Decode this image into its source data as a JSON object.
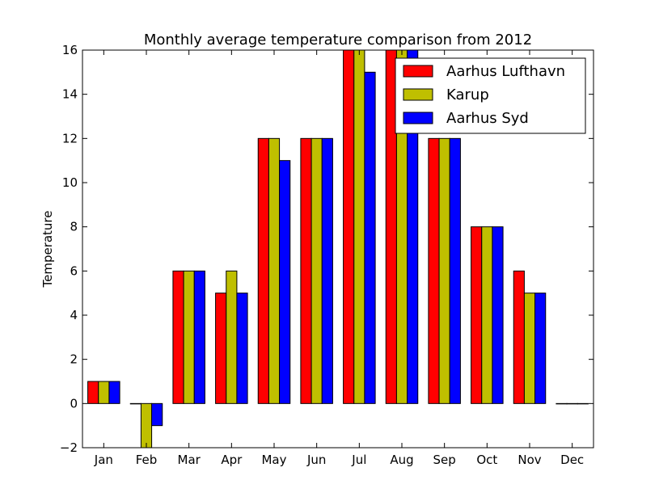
{
  "chart_data": {
    "type": "bar",
    "title": "Monthly average temperature comparison from 2012",
    "xlabel": "",
    "ylabel": "Temperature",
    "ylim": [
      -2,
      16
    ],
    "yticks": [
      -2,
      0,
      2,
      4,
      6,
      8,
      10,
      12,
      14,
      16
    ],
    "categories": [
      "Jan",
      "Feb",
      "Mar",
      "Apr",
      "May",
      "Jun",
      "Jul",
      "Aug",
      "Sep",
      "Oct",
      "Nov",
      "Dec"
    ],
    "series": [
      {
        "name": "Aarhus Lufthavn",
        "color": "#ff0000",
        "values": [
          1,
          0,
          6,
          5,
          12,
          12,
          16,
          16,
          12,
          8,
          6,
          0
        ]
      },
      {
        "name": "Karup",
        "color": "#bfbf00",
        "values": [
          1,
          -2,
          6,
          6,
          12,
          12,
          16,
          16,
          12,
          8,
          5,
          0
        ]
      },
      {
        "name": "Aarhus Syd",
        "color": "#0000ff",
        "values": [
          1,
          -1,
          6,
          5,
          11,
          12,
          15,
          16,
          12,
          8,
          5,
          0
        ]
      }
    ],
    "grid": false,
    "legend_position": "top-right"
  }
}
